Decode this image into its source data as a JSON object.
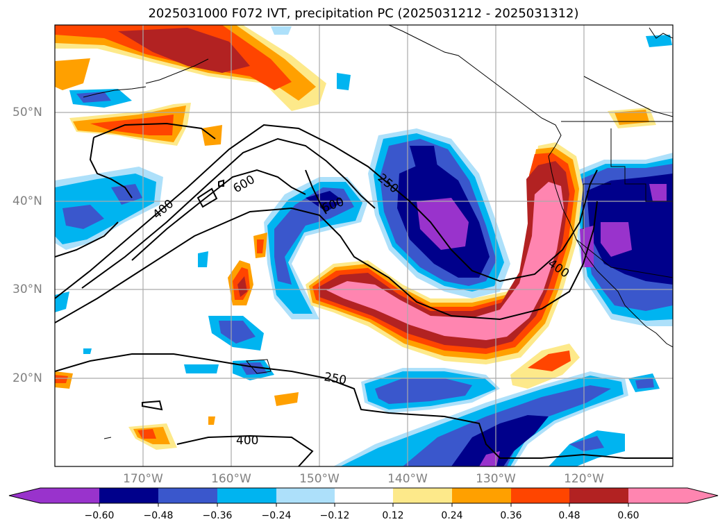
{
  "title": "2025031000 F072 IVT, precipitation PC (2025031212 - 2025031312)",
  "map": {
    "lat_labels": [
      "50°N",
      "40°N",
      "30°N",
      "20°N"
    ],
    "lon_labels": [
      "170°W",
      "160°W",
      "150°W",
      "140°W",
      "130°W",
      "120°W"
    ],
    "contour_labels": [
      "250",
      "600",
      "400",
      "600",
      "400",
      "250",
      "400"
    ]
  },
  "colorbar": {
    "ticks": [
      "−0.60",
      "−0.48",
      "−0.36",
      "−0.24",
      "−0.12",
      "0.12",
      "0.24",
      "0.36",
      "0.48",
      "0.60"
    ],
    "colors": [
      "#9933cc",
      "#00008b",
      "#3a57cc",
      "#00b4f0",
      "#ade0fa",
      "#ffffff",
      "#fde98a",
      "#ffa000",
      "#ff4500",
      "#b22222",
      "#ff85b0",
      "#ff85b0"
    ]
  }
}
